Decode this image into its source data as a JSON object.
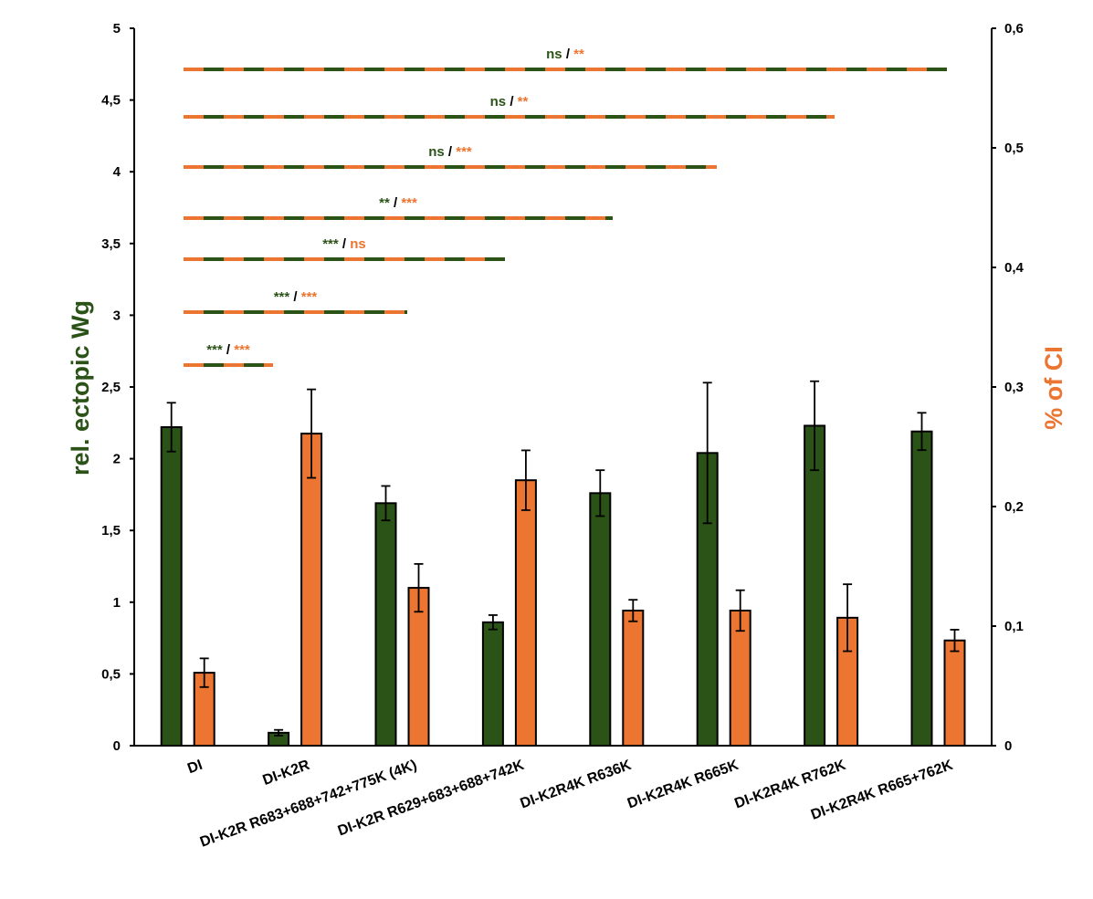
{
  "colors": {
    "green": "#2b5318",
    "orange": "#ec7531",
    "axis": "#000000"
  },
  "chart_data": {
    "type": "bar",
    "categories": [
      "DI",
      "DI-K2R",
      "DI-K2R R683+688+742+775K (4K)",
      "DI-K2R R629+683+688+742K",
      "DI-K2R4K R636K",
      "DI-K2R4K R665K",
      "DI-K2R4K R762K",
      "DI-K2R4K R665+762K"
    ],
    "y_axis_left": {
      "label": "rel. ectopic Wg",
      "range": [
        0,
        5
      ],
      "ticks": [
        0,
        0.5,
        1,
        1.5,
        2,
        2.5,
        3,
        3.5,
        4,
        4.5,
        5
      ],
      "tick_labels": [
        "0",
        "0,5",
        "1",
        "1,5",
        "2",
        "2,5",
        "3",
        "3,5",
        "4",
        "4,5",
        "5"
      ]
    },
    "y_axis_right": {
      "label": "% of CI",
      "range": [
        0,
        0.6
      ],
      "ticks": [
        0,
        0.1,
        0.2,
        0.3,
        0.4,
        0.5,
        0.6
      ],
      "tick_labels": [
        "0",
        "0,1",
        "0,2",
        "0,3",
        "0,4",
        "0,5",
        "0,6"
      ]
    },
    "series": [
      {
        "name": "rel. ectopic Wg",
        "axis": "left",
        "color": "#2b5318",
        "values": [
          2.22,
          0.09,
          1.69,
          0.86,
          1.76,
          2.04,
          2.23,
          2.19
        ],
        "errors": [
          0.17,
          0.02,
          0.12,
          0.05,
          0.16,
          0.49,
          0.31,
          0.13
        ]
      },
      {
        "name": "% of CI",
        "axis": "right",
        "color": "#ec7531",
        "values": [
          0.061,
          0.261,
          0.132,
          0.222,
          0.113,
          0.113,
          0.107,
          0.088
        ],
        "errors": [
          0.012,
          0.037,
          0.02,
          0.025,
          0.009,
          0.017,
          0.028,
          0.009
        ]
      }
    ],
    "significance": [
      {
        "to_category": 1,
        "green": "***",
        "orange": "***"
      },
      {
        "to_category": 2,
        "green": "***",
        "orange": "***"
      },
      {
        "to_category": 3,
        "green": "***",
        "orange": "ns"
      },
      {
        "to_category": 4,
        "green": "**",
        "orange": "***"
      },
      {
        "to_category": 5,
        "green": "ns",
        "orange": "***"
      },
      {
        "to_category": 6,
        "green": "ns",
        "orange": "**"
      },
      {
        "to_category": 7,
        "green": "ns",
        "orange": "**"
      }
    ],
    "sig_separator": "/"
  }
}
